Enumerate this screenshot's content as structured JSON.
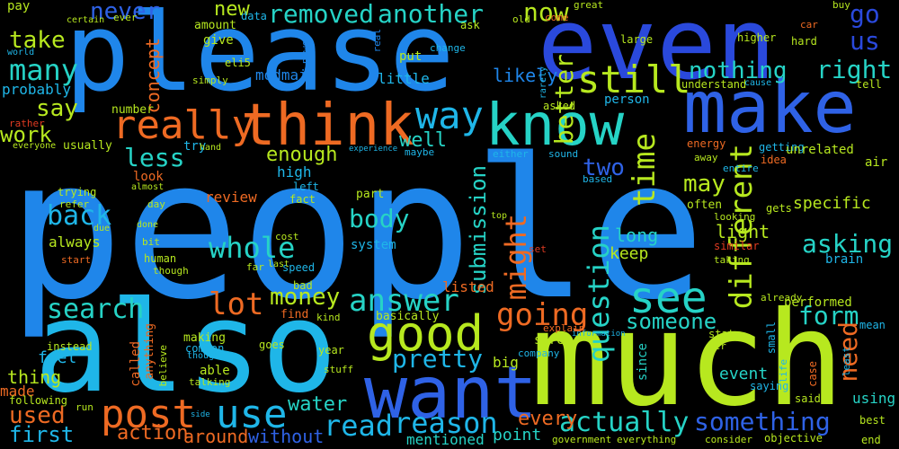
{
  "palette": {
    "royal_blue": "#2f62e6",
    "azure": "#1f86ea",
    "sky": "#1fb6e8",
    "cyan": "#26d3c6",
    "lime": "#b7e81f",
    "green": "#3fce4a",
    "orange": "#ee6a23",
    "red": "#e23b22",
    "deep_blue": "#2a49dc"
  },
  "words": [
    "people",
    "also",
    "much",
    "please",
    "even",
    "make",
    "want",
    "think",
    "know",
    "really",
    "good",
    "way",
    "see",
    "use",
    "still",
    "post",
    "time",
    "different",
    "might",
    "whole",
    "lot",
    "answer",
    "going",
    "question",
    "back",
    "read",
    "reason",
    "actually",
    "something",
    "search",
    "removed",
    "another",
    "now",
    "go",
    "us",
    "nothing",
    "right",
    "never",
    "new",
    "many",
    "take",
    "say",
    "work",
    "less",
    "body",
    "better",
    "used",
    "first",
    "form",
    "money",
    "asking",
    "need",
    "may",
    "two",
    "well",
    "enough",
    "pretty",
    "someone",
    "submission",
    "every",
    "water",
    "without",
    "around",
    "action",
    "thing",
    "made",
    "feel",
    "concept",
    "probably",
    "always",
    "review",
    "long",
    "keep",
    "light",
    "specific",
    "event",
    "using",
    "mentioned",
    "point",
    "listed",
    "little",
    "likely",
    "modmail",
    "eli5",
    "put",
    "give",
    "amount",
    "data",
    "power",
    "real",
    "ask",
    "old",
    "come",
    "great",
    "buy",
    "car",
    "hard",
    "higher",
    "large",
    "change",
    "rarely",
    "tell",
    "understand",
    "cause",
    "person",
    "asked",
    "energy",
    "getting",
    "unrelated",
    "air",
    "idea",
    "entire",
    "away",
    "gets",
    "often",
    "looking",
    "similar",
    "taking",
    "brain",
    "performed",
    "already",
    "mean",
    "small",
    "state",
    "per",
    "life",
    "saying",
    "case",
    "least",
    "said",
    "best",
    "end",
    "objective",
    "consider",
    "everything",
    "government",
    "company",
    "big",
    "information",
    "explain",
    "sure",
    "since",
    "year",
    "stuff",
    "thought",
    "believe",
    "talking",
    "side",
    "following",
    "run",
    "called",
    "anything",
    "instead",
    "making",
    "common",
    "goes",
    "able",
    "kind",
    "find",
    "bad",
    "basically",
    "system",
    "part",
    "cost",
    "speed",
    "last",
    "far",
    "human",
    "though",
    "bit",
    "due",
    "done",
    "start",
    "day",
    "fact",
    "left",
    "high",
    "based",
    "either",
    "sound",
    "experience",
    "maybe",
    "try",
    "hand",
    "usually",
    "everyone",
    "rather",
    "world",
    "pay",
    "certain",
    "ever",
    "simply",
    "number",
    "look",
    "almost",
    "trying",
    "refer",
    "top",
    "set"
  ]
}
